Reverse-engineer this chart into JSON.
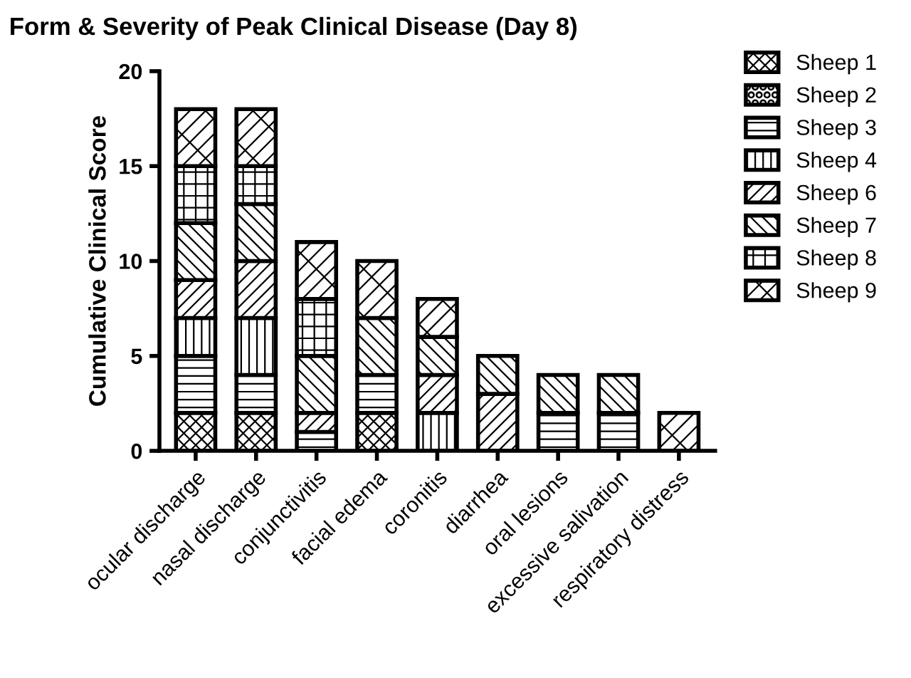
{
  "chart_data": {
    "type": "bar",
    "stacked": true,
    "title": "Form & Severity of Peak Clinical Disease (Day 8)",
    "ylabel": "Cumulative Clinical Score",
    "categories": [
      "ocular discharge",
      "nasal discharge",
      "conjunctivitis",
      "facial edema",
      "coronitis",
      "diarrhea",
      "oral lesions",
      "excessive salivation",
      "respiratory distress"
    ],
    "ylim": [
      0,
      20
    ],
    "yticks": [
      0,
      5,
      10,
      15,
      20
    ],
    "grid": false,
    "legend": "right",
    "series": [
      {
        "name": "Sheep 1",
        "color": "#000000",
        "values": [
          2,
          2,
          0,
          2,
          0,
          0,
          0,
          0,
          0
        ]
      },
      {
        "name": "Sheep 2",
        "color": "#000000",
        "values": [
          0,
          0,
          0,
          0,
          0,
          0,
          0,
          0,
          0
        ]
      },
      {
        "name": "Sheep 3",
        "color": "#000000",
        "values": [
          3,
          2,
          1,
          2,
          0,
          0,
          2,
          2,
          0
        ]
      },
      {
        "name": "Sheep 4",
        "color": "#000000",
        "values": [
          2,
          3,
          0,
          0,
          2,
          0,
          0,
          0,
          0
        ]
      },
      {
        "name": "Sheep 6",
        "color": "#000000",
        "values": [
          2,
          3,
          1,
          0,
          2,
          3,
          0,
          0,
          0
        ]
      },
      {
        "name": "Sheep 7",
        "color": "#000000",
        "values": [
          3,
          3,
          3,
          3,
          2,
          2,
          2,
          2,
          0
        ]
      },
      {
        "name": "Sheep 8",
        "color": "#000000",
        "values": [
          3,
          2,
          3,
          0,
          0,
          0,
          0,
          0,
          0
        ]
      },
      {
        "name": "Sheep 9",
        "color": "#000000",
        "values": [
          3,
          3,
          3,
          3,
          2,
          0,
          0,
          0,
          2
        ]
      }
    ]
  }
}
